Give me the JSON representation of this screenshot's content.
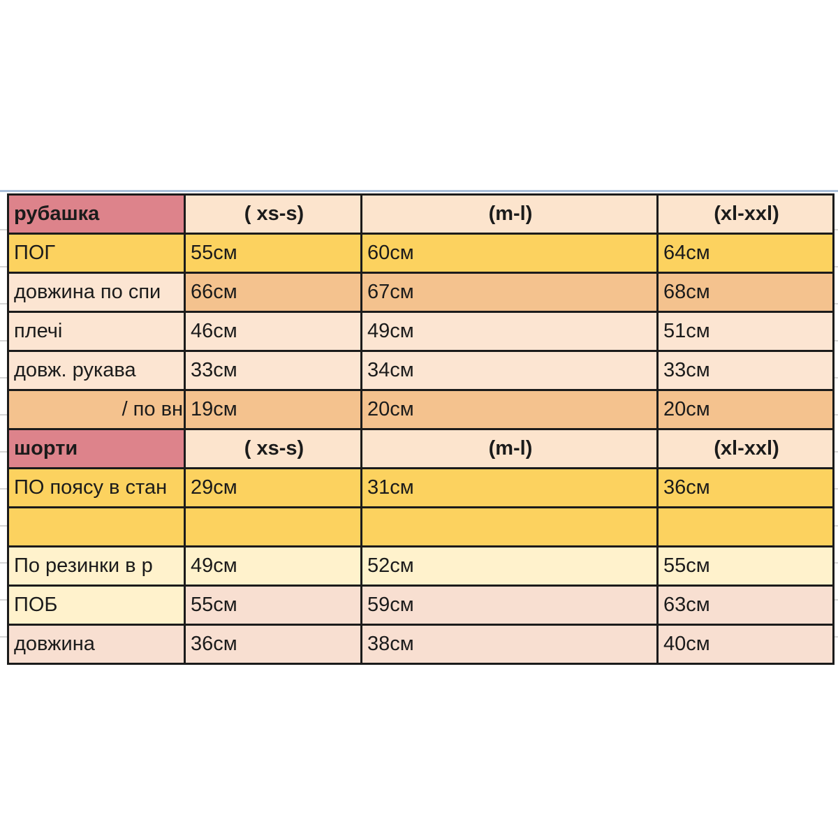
{
  "app": "spreadsheet-size-chart",
  "palette": {
    "pink": "#DD838B",
    "peach_header": "#FCE4CD",
    "peach_light": "#FCE5D2",
    "orange": "#F4C28E",
    "yellow": "#FCD25F",
    "cream": "#FFF2CC",
    "rose_light": "#F8DFD1",
    "table_border": "#1B1B1B",
    "text": "#1B1B1B",
    "sheet_gridline": "#D5D5D5",
    "top_rule_blue": "#A9BED9",
    "page_background": "#FFFFFF"
  },
  "table": {
    "rows": [
      {
        "cells": [
          {
            "text": "рубашка",
            "bg": "pink",
            "bold": true
          },
          {
            "text": "( xs-s)",
            "bg": "peach_header",
            "bold": true,
            "align": "center"
          },
          {
            "text": "(m-l)",
            "bg": "peach_header",
            "bold": true,
            "align": "center"
          },
          {
            "text": "(xl-xxl)",
            "bg": "peach_header",
            "bold": true,
            "align": "center"
          }
        ]
      },
      {
        "cells": [
          {
            "text": "ПОГ",
            "bg": "yellow"
          },
          {
            "text": "55см",
            "bg": "yellow"
          },
          {
            "text": "60см",
            "bg": "yellow"
          },
          {
            "text": "64см",
            "bg": "yellow"
          }
        ]
      },
      {
        "cells": [
          {
            "text": "довжина по спи",
            "bg": "peach_light"
          },
          {
            "text": "66см",
            "bg": "orange"
          },
          {
            "text": "67см",
            "bg": "orange"
          },
          {
            "text": "68см",
            "bg": "orange"
          }
        ]
      },
      {
        "cells": [
          {
            "text": "плечі",
            "bg": "peach_light"
          },
          {
            "text": "46см",
            "bg": "peach_light"
          },
          {
            "text": "49см",
            "bg": "peach_light"
          },
          {
            "text": "51см",
            "bg": "peach_light"
          }
        ]
      },
      {
        "cells": [
          {
            "text": "довж. рукава",
            "bg": "peach_light"
          },
          {
            "text": "33см",
            "bg": "peach_light"
          },
          {
            "text": "34см",
            "bg": "peach_light"
          },
          {
            "text": "33см",
            "bg": "peach_light"
          }
        ]
      },
      {
        "cells": [
          {
            "text": "/ по вн",
            "bg": "orange",
            "align": "right"
          },
          {
            "text": "19см",
            "bg": "orange"
          },
          {
            "text": "20см",
            "bg": "orange"
          },
          {
            "text": "20см",
            "bg": "orange"
          }
        ]
      },
      {
        "cells": [
          {
            "text": "шорти",
            "bg": "pink",
            "bold": true
          },
          {
            "text": "( xs-s)",
            "bg": "peach_header",
            "bold": true,
            "align": "center"
          },
          {
            "text": "(m-l)",
            "bg": "peach_header",
            "bold": true,
            "align": "center"
          },
          {
            "text": "(xl-xxl)",
            "bg": "peach_header",
            "bold": true,
            "align": "center"
          }
        ]
      },
      {
        "cells": [
          {
            "text": "ПО поясу в стан",
            "bg": "yellow"
          },
          {
            "text": "29см",
            "bg": "yellow"
          },
          {
            "text": "31см",
            "bg": "yellow"
          },
          {
            "text": "36см",
            "bg": "yellow"
          }
        ]
      },
      {
        "cells": [
          {
            "text": "",
            "bg": "yellow"
          },
          {
            "text": "",
            "bg": "yellow"
          },
          {
            "text": "",
            "bg": "yellow"
          },
          {
            "text": "",
            "bg": "yellow"
          }
        ]
      },
      {
        "cells": [
          {
            "text": " По резинки в р",
            "bg": "cream"
          },
          {
            "text": "49см",
            "bg": "cream"
          },
          {
            "text": "52см",
            "bg": "cream"
          },
          {
            "text": "55см",
            "bg": "cream"
          }
        ]
      },
      {
        "cells": [
          {
            "text": "ПОБ",
            "bg": "cream"
          },
          {
            "text": "55см",
            "bg": "rose_light"
          },
          {
            "text": "59см",
            "bg": "rose_light"
          },
          {
            "text": "63см",
            "bg": "rose_light"
          }
        ]
      },
      {
        "cells": [
          {
            "text": "довжина",
            "bg": "rose_light"
          },
          {
            "text": "36см",
            "bg": "rose_light"
          },
          {
            "text": "38см",
            "bg": "rose_light"
          },
          {
            "text": "40см",
            "bg": "rose_light"
          }
        ]
      }
    ]
  }
}
